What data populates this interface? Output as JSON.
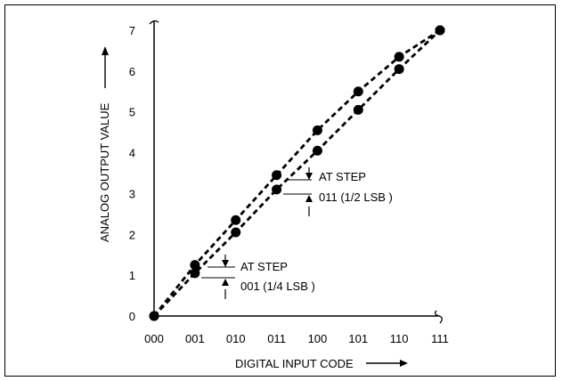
{
  "chart_data": {
    "type": "scatter",
    "title": "",
    "xlabel": "DIGITAL INPUT CODE",
    "ylabel": "ANALOG OUTPUT VALUE",
    "x_categories": [
      "000",
      "001",
      "010",
      "011",
      "100",
      "101",
      "110",
      "111"
    ],
    "y_ticks": [
      "0",
      "1",
      "2",
      "3",
      "4",
      "5",
      "6",
      "7"
    ],
    "ylim": [
      0,
      7
    ],
    "grid": false,
    "series": [
      {
        "values": [
          0,
          1.25,
          2.35,
          3.45,
          4.55,
          5.5,
          6.35,
          7
        ],
        "line_style": "dashed",
        "color": "#000000"
      },
      {
        "values": [
          0,
          1.05,
          2.05,
          3.1,
          4.05,
          5.05,
          6.05,
          7
        ],
        "line_style": "dashed",
        "color": "#000000"
      }
    ],
    "annotations": [
      {
        "text_line1": "AT STEP",
        "text_line2": "001 (1/4 LSB )",
        "at_code": "001"
      },
      {
        "text_line1": "AT STEP",
        "text_line2": "011 (1/2 LSB )",
        "at_code": "011"
      }
    ]
  }
}
